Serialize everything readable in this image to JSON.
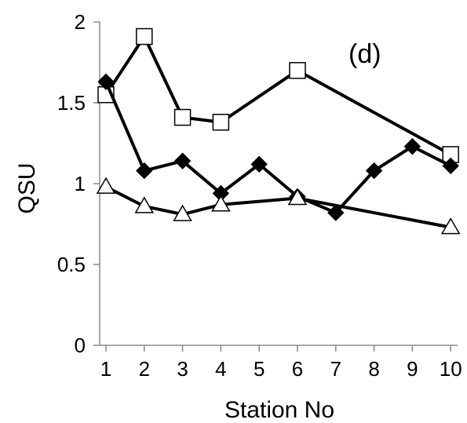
{
  "chart_data": {
    "type": "line",
    "panel_label": "(d)",
    "xlabel": "Station No",
    "ylabel": "QSU",
    "ylim": [
      0,
      2
    ],
    "y_ticks": [
      "0",
      "0.5",
      "1",
      "1.5",
      "2"
    ],
    "x_ticks": [
      "1",
      "2",
      "3",
      "4",
      "5",
      "6",
      "7",
      "8",
      "9",
      "10"
    ],
    "grid": false,
    "legend": "none",
    "series": [
      {
        "marker": "square",
        "color": "#000000",
        "points": [
          [
            1,
            1.55
          ],
          [
            2,
            1.91
          ],
          [
            3,
            1.41
          ],
          [
            4,
            1.38
          ],
          [
            6,
            1.7
          ],
          [
            10,
            1.18
          ]
        ]
      },
      {
        "marker": "diamond",
        "color": "#000000",
        "points": [
          [
            1,
            1.63
          ],
          [
            2,
            1.08
          ],
          [
            3,
            1.14
          ],
          [
            4,
            0.94
          ],
          [
            5,
            1.12
          ],
          [
            6,
            0.92
          ],
          [
            7,
            0.82
          ],
          [
            8,
            1.08
          ],
          [
            9,
            1.23
          ],
          [
            10,
            1.11
          ]
        ]
      },
      {
        "marker": "triangle",
        "color": "#000000",
        "points": [
          [
            1,
            0.98
          ],
          [
            2,
            0.86
          ],
          [
            3,
            0.81
          ],
          [
            4,
            0.87
          ],
          [
            6,
            0.91
          ],
          [
            10,
            0.73
          ]
        ]
      }
    ]
  }
}
